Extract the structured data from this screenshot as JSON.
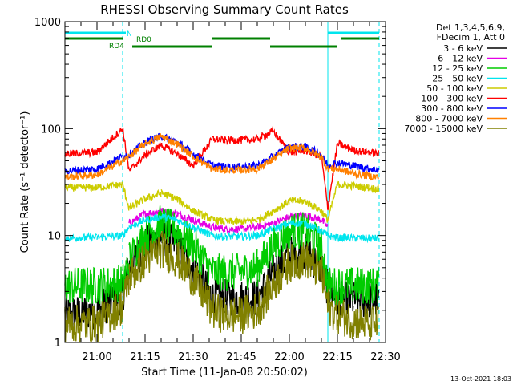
{
  "chart_data": {
    "type": "line",
    "title": "RHESSI Observing Summary Count Rates",
    "xlabel": "Start Time (11-Jan-08 20:50:02)",
    "ylabel": "Count Rate (s⁻¹ detector⁻¹)",
    "yscale": "log",
    "xlim": [
      "20:50",
      "22:30"
    ],
    "ylim": [
      1,
      1000
    ],
    "x_ticks": [
      "21:00",
      "21:15",
      "21:30",
      "21:45",
      "22:00",
      "22:15",
      "22:30"
    ],
    "y_ticks": [
      "1",
      "10",
      "100",
      "1000"
    ],
    "timestamp": "13-Oct-2021 18:03",
    "legend": {
      "position": "right",
      "header": [
        "Det 1,3,4,5,6,9,",
        "FDecim 1, Att 0"
      ]
    },
    "flags": [
      {
        "label": "N",
        "color": "#00e5ee"
      },
      {
        "label": "RD0",
        "color": "#008000"
      },
      {
        "label": "RD4",
        "color": "#008000"
      }
    ],
    "vlines": [
      {
        "time": "21:08",
        "color": "#00e5ee",
        "style": "dashed"
      },
      {
        "time": "22:12",
        "color": "#00e5ee",
        "style": "solid"
      },
      {
        "time": "22:28",
        "color": "#00e5ee",
        "style": "dashed"
      }
    ],
    "x": [
      "20:50",
      "21:00",
      "21:08",
      "21:10",
      "21:15",
      "21:20",
      "21:25",
      "21:30",
      "21:36",
      "21:40",
      "21:45",
      "21:50",
      "21:55",
      "22:00",
      "22:05",
      "22:10",
      "22:12",
      "22:15",
      "22:20",
      "22:25",
      "22:28"
    ],
    "series": [
      {
        "name": "3 - 6 keV",
        "color": "#000000",
        "values": [
          1.8,
          2.0,
          2.8,
          5,
          8,
          10,
          8,
          5,
          2.6,
          2.6,
          2.6,
          2.6,
          4.5,
          6.5,
          7,
          5,
          3.2,
          2.5,
          2.5,
          2.5,
          2.5
        ]
      },
      {
        "name": "6 - 12 keV",
        "color": "#e500e5",
        "values": [
          null,
          null,
          null,
          13,
          16,
          17,
          16,
          14,
          12,
          11.5,
          11.5,
          12,
          13,
          15,
          15.5,
          14,
          12,
          null,
          null,
          null,
          null
        ]
      },
      {
        "name": "12 - 25 keV",
        "color": "#00cc00",
        "values": [
          3.4,
          3.4,
          3.6,
          6,
          10,
          13,
          11,
          8,
          4.5,
          4.5,
          4.6,
          5,
          8,
          11,
          11,
          8,
          3.4,
          3.4,
          3.4,
          3.4,
          3.4
        ]
      },
      {
        "name": "25 - 50 keV",
        "color": "#00e5ee",
        "values": [
          9.5,
          9.6,
          10,
          12,
          14,
          15,
          14,
          12,
          10,
          9.8,
          9.8,
          10,
          11.5,
          13,
          13,
          11,
          10,
          9.5,
          9.5,
          9.4,
          9.4
        ]
      },
      {
        "name": "50 - 100 keV",
        "color": "#cccc00",
        "values": [
          28,
          28,
          30,
          18,
          22,
          25,
          22,
          17,
          14,
          13.5,
          13.5,
          14,
          17,
          21,
          21,
          17,
          14,
          30,
          29,
          28,
          27
        ]
      },
      {
        "name": "100 - 300 keV",
        "color": "#ff0000",
        "values": [
          58,
          60,
          100,
          40,
          57,
          70,
          58,
          45,
          80,
          78,
          78,
          80,
          95,
          60,
          62,
          55,
          18,
          72,
          63,
          60,
          58
        ]
      },
      {
        "name": "300 - 800 keV",
        "color": "#0000ff",
        "values": [
          40,
          42,
          55,
          57,
          75,
          85,
          75,
          58,
          45,
          44,
          44,
          45,
          55,
          68,
          68,
          57,
          45,
          48,
          45,
          42,
          41
        ]
      },
      {
        "name": "800 - 7000 keV",
        "color": "#ff8000",
        "values": [
          35,
          37,
          50,
          55,
          72,
          85,
          72,
          55,
          42,
          41,
          41,
          42,
          52,
          66,
          66,
          54,
          42,
          42,
          38,
          36,
          35
        ]
      },
      {
        "name": "7000 - 15000 keV",
        "color": "#808000",
        "values": [
          1.5,
          1.5,
          2.2,
          4,
          6,
          7.5,
          6,
          4,
          2,
          1.8,
          1.8,
          2,
          3.5,
          5.5,
          6,
          4.5,
          2.2,
          1.8,
          1.6,
          1.5,
          1.5
        ]
      }
    ]
  }
}
